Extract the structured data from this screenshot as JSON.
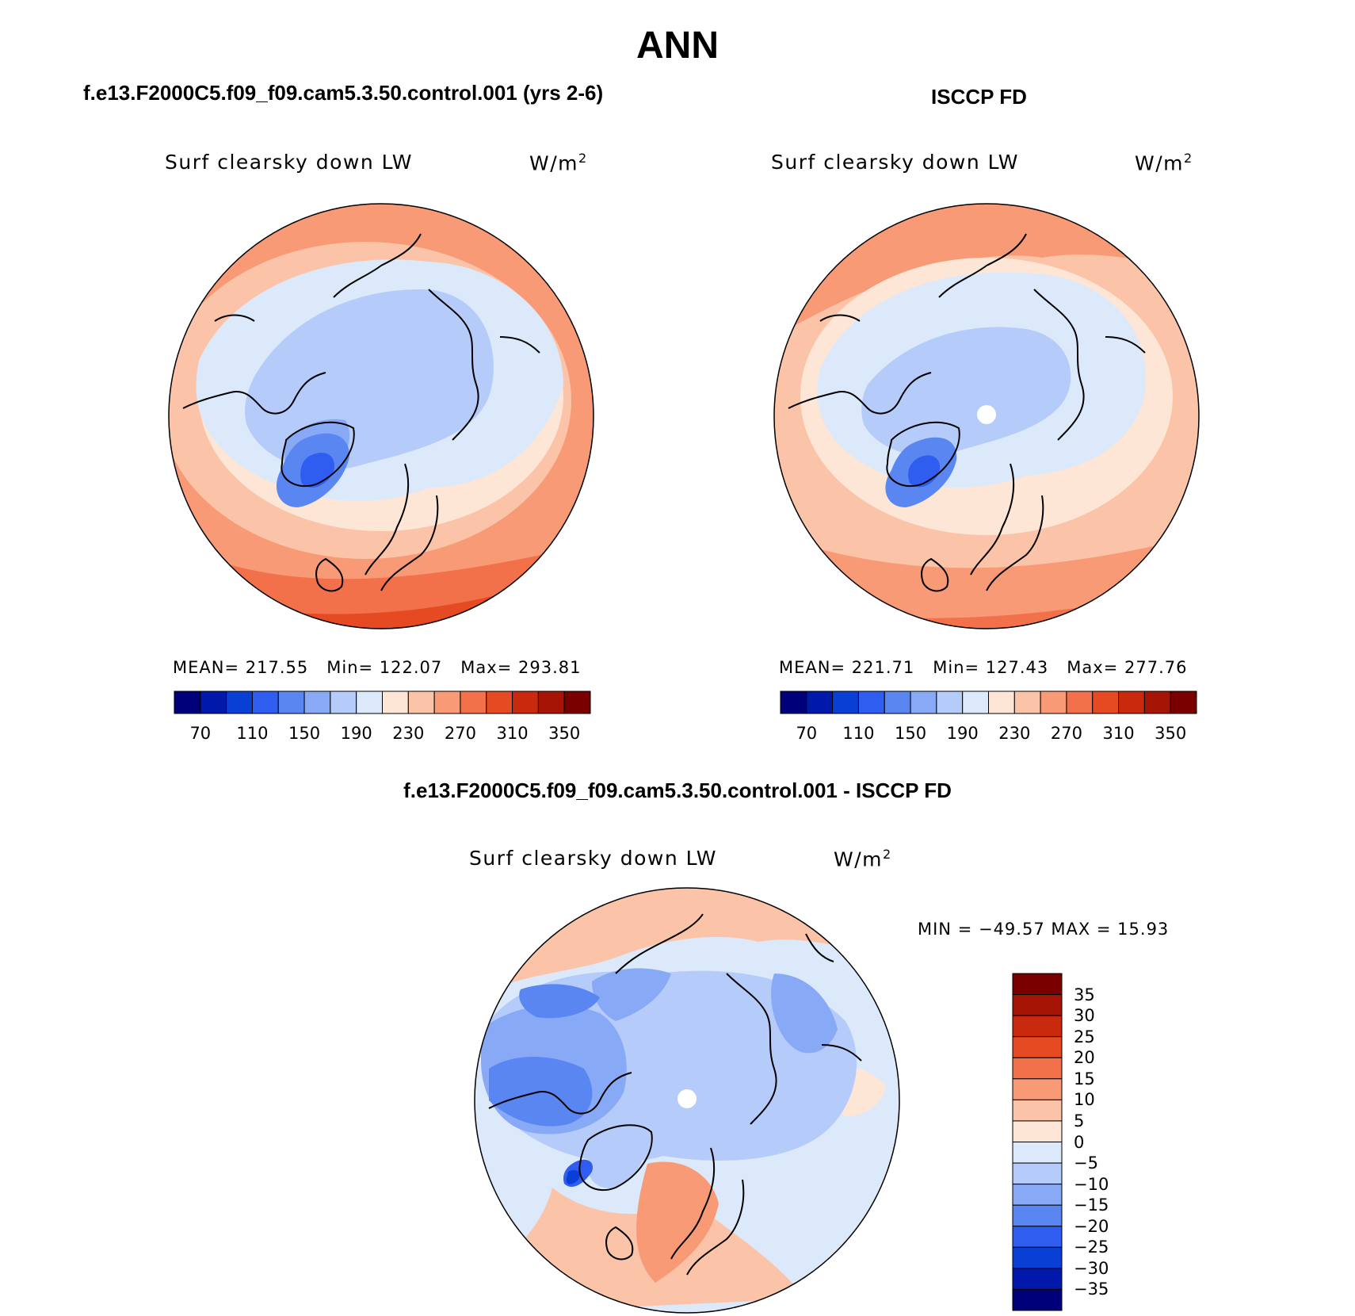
{
  "title": "ANN",
  "panels": [
    {
      "id": "model",
      "heading": "f.e13.F2000C5.f09_f09.cam5.3.50.control.001 (yrs 2-6)",
      "variable": "Surf clearsky down LW",
      "units_base": "W/m",
      "units_exp": "2",
      "stats": {
        "mean": "MEAN= 217.55",
        "min": "Min= 122.07",
        "max": "Max= 293.81"
      },
      "colorbar": {
        "ticks": [
          "70",
          "110",
          "150",
          "190",
          "230",
          "270",
          "310",
          "350"
        ]
      }
    },
    {
      "id": "obs",
      "heading": "ISCCP FD",
      "variable": "Surf clearsky down LW",
      "units_base": "W/m",
      "units_exp": "2",
      "stats": {
        "mean": "MEAN= 221.71",
        "min": "Min= 127.43",
        "max": "Max= 277.76"
      },
      "colorbar": {
        "ticks": [
          "70",
          "110",
          "150",
          "190",
          "230",
          "270",
          "310",
          "350"
        ]
      }
    },
    {
      "id": "diff",
      "heading": "f.e13.F2000C5.f09_f09.cam5.3.50.control.001 - ISCCP FD",
      "variable": "Surf clearsky down LW",
      "units_base": "W/m",
      "units_exp": "2",
      "minmax": "MIN = −49.57 MAX =  15.93",
      "colorbar": {
        "ticks": [
          "35",
          "30",
          "25",
          "20",
          "15",
          "10",
          "5",
          "0",
          "−5",
          "−10",
          "−15",
          "−20",
          "−25",
          "−30",
          "−35"
        ]
      }
    }
  ],
  "palette_abs": [
    "#00007a",
    "#0019ab",
    "#0a3fd6",
    "#2f5df0",
    "#5a86f2",
    "#88a9f5",
    "#b5cbf9",
    "#dbe9fb",
    "#fde6d6",
    "#fbc4a8",
    "#f89a75",
    "#f2704a",
    "#e64a22",
    "#c92a0e",
    "#a51405",
    "#7a0000"
  ],
  "palette_diff": [
    "#7a0000",
    "#a51405",
    "#c92a0e",
    "#e64a22",
    "#f2704a",
    "#f89a75",
    "#fbc4a8",
    "#fde6d6",
    "#dbe9fb",
    "#b5cbf9",
    "#88a9f5",
    "#5a86f2",
    "#2f5df0",
    "#0a3fd6",
    "#0019ab",
    "#00007a"
  ]
}
